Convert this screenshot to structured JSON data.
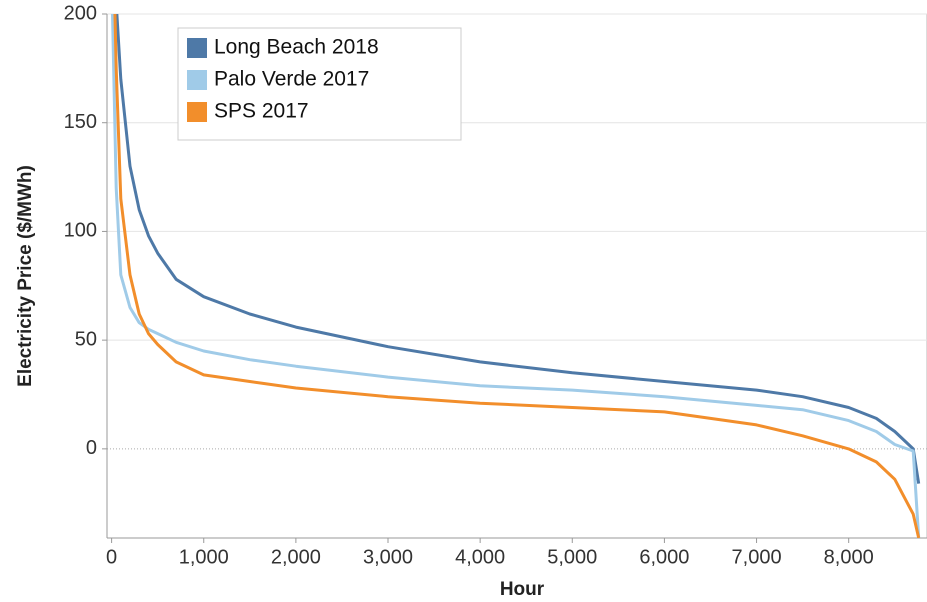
{
  "chart_data": {
    "type": "line",
    "x_label": "Hour",
    "y_label": "Electricity Price ($/MWh)",
    "x": [
      10,
      50,
      100,
      200,
      300,
      400,
      500,
      700,
      1000,
      1500,
      2000,
      3000,
      4000,
      5000,
      6000,
      7000,
      7500,
      8000,
      8300,
      8500,
      8700,
      8760
    ],
    "series": [
      {
        "name": "Long Beach 2018",
        "color": "#4e79a7",
        "values": [
          260,
          205,
          170,
          130,
          110,
          98,
          90,
          78,
          70,
          62,
          56,
          47,
          40,
          35,
          31,
          27,
          24,
          19,
          14,
          8,
          0,
          -16
        ]
      },
      {
        "name": "Palo Verde 2017",
        "color": "#a0cbe8",
        "values": [
          200,
          120,
          80,
          65,
          58,
          55,
          53,
          49,
          45,
          41,
          38,
          33,
          29,
          27,
          24,
          20,
          18,
          13,
          8,
          2,
          -1,
          -41
        ]
      },
      {
        "name": "SPS 2017",
        "color": "#f28e2b",
        "values": [
          250,
          175,
          115,
          80,
          62,
          53,
          48,
          40,
          34,
          31,
          28,
          24,
          21,
          19,
          17,
          11,
          6,
          0,
          -6,
          -14,
          -30,
          -41
        ]
      }
    ],
    "xlim": [
      -50,
      8850
    ],
    "ylim": [
      -41,
      200
    ],
    "xticks": [
      0,
      {
        "value": 1000,
        "label": "1,000"
      },
      {
        "value": 2000,
        "label": "2,000"
      },
      {
        "value": 3000,
        "label": "3,000"
      },
      {
        "value": 4000,
        "label": "4,000"
      },
      {
        "value": 5000,
        "label": "5,000"
      },
      {
        "value": 6000,
        "label": "6,000"
      },
      {
        "value": 7000,
        "label": "7,000"
      },
      {
        "value": 8000,
        "label": "8,000"
      }
    ],
    "yticks": [
      0,
      50,
      100,
      150,
      200
    ],
    "grid": true,
    "legend": "upper left"
  }
}
